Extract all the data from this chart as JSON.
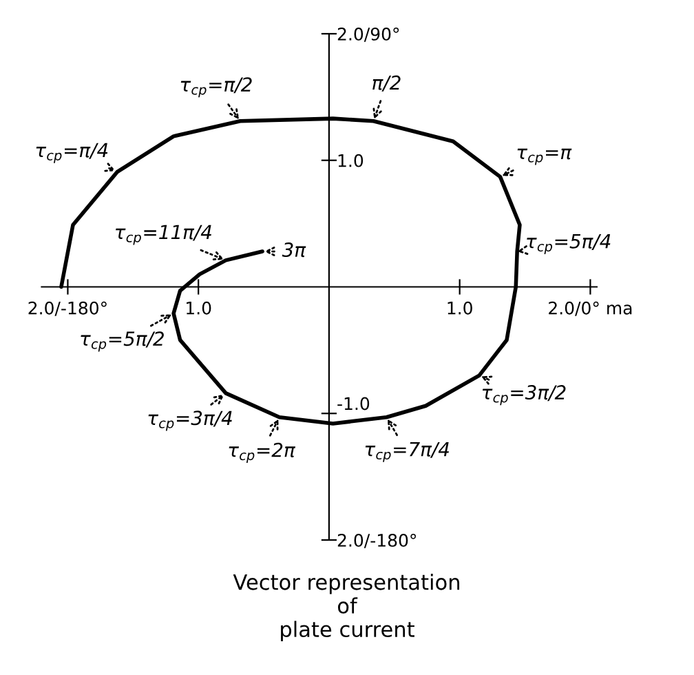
{
  "chart_data": {
    "type": "line",
    "x": [
      -2.05,
      -1.96,
      -1.62,
      -1.19,
      -0.68,
      0.03,
      0.34,
      0.95,
      1.31,
      1.46,
      1.44,
      1.43,
      1.36,
      1.15,
      0.74,
      0.44,
      0.03,
      -0.38,
      -0.79,
      -1.14,
      -1.19,
      -1.14,
      -0.99,
      -0.79,
      -0.51
    ],
    "series": [
      {
        "color": "#000000",
        "values": [
          0,
          0.49,
          0.91,
          1.19,
          1.31,
          1.33,
          1.31,
          1.15,
          0.87,
          0.49,
          0.28,
          0,
          -0.42,
          -0.7,
          -0.94,
          -1.03,
          -1.08,
          -1.03,
          -0.84,
          -0.42,
          -0.21,
          -0.03,
          0.1,
          0.21,
          0.28
        ]
      }
    ],
    "xlim": [
      -2.2,
      2.05
    ],
    "ylim": [
      -2,
      2
    ],
    "xticks": [
      {
        "value": -2,
        "label": "2.0/-180°"
      },
      {
        "value": -1,
        "label": "1.0"
      },
      {
        "value": 1,
        "label": "1.0"
      },
      {
        "value": 2,
        "label": "2.0/0° ma"
      }
    ],
    "yticks": [
      {
        "value": -2,
        "label": "2.0/-180°"
      },
      {
        "value": -1,
        "label": "-1.0"
      },
      {
        "value": 1,
        "label": "1.0"
      },
      {
        "value": 2,
        "label": "2.0/90°"
      }
    ],
    "grid": false,
    "marker": "none",
    "line_style": "solid",
    "annotations": [
      {
        "text": "τ$_{cp}$=π/2",
        "x": -0.68,
        "y": 1.31
      },
      {
        "text": "τ$_{cp}$=π/4",
        "x": -1.62,
        "y": 0.91
      },
      {
        "text": "π/2",
        "x": 0.34,
        "y": 1.31
      },
      {
        "text": "τ$_{cp}$=π",
        "x": 1.31,
        "y": 0.87
      },
      {
        "text": "τ$_{cp}$=5π/4",
        "x": 1.44,
        "y": 0.28
      },
      {
        "text": "τ$_{cp}$=3π/2",
        "x": 1.15,
        "y": -0.7
      },
      {
        "text": "τ$_{cp}$=7π/4",
        "x": 0.44,
        "y": -1.03
      },
      {
        "text": "τ$_{cp}$=2π",
        "x": -0.38,
        "y": -1.03
      },
      {
        "text": "τ$_{cp}$=3π/4",
        "x": -0.79,
        "y": -0.84
      },
      {
        "text": "τ$_{cp}$=5π/2",
        "x": -1.19,
        "y": -0.21
      },
      {
        "text": "τ$_{cp}$=11π/4",
        "x": -0.79,
        "y": 0.21
      },
      {
        "text": "3π",
        "x": -0.51,
        "y": 0.28
      },
      "Vector representation\nof\nplate current"
    ]
  }
}
